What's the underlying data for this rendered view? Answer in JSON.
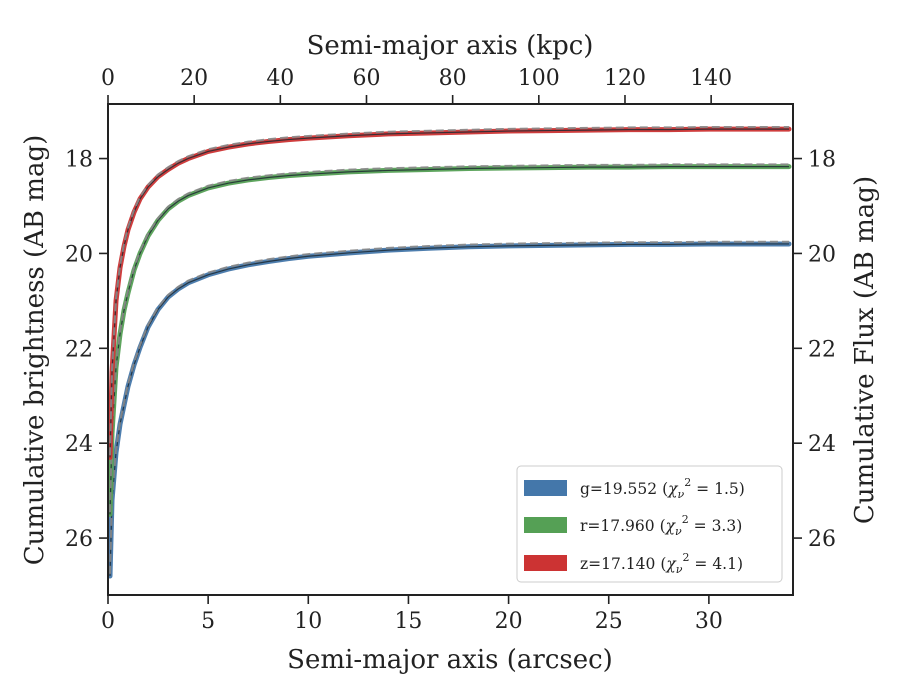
{
  "chart_data": {
    "type": "line",
    "xlabel": "Semi-major axis (arcsec)",
    "x2label": "Semi-major axis (kpc)",
    "ylabel": "Cumulative brightness (AB mag)",
    "y2label": "Cumulative Flux (AB mag)",
    "xlim": [
      0,
      34.2
    ],
    "x2lim": [
      0,
      159
    ],
    "ylim": [
      27.2,
      16.85
    ],
    "y_inverted": true,
    "x_ticks": [
      0,
      5,
      10,
      15,
      20,
      25,
      30
    ],
    "x_tick_labels": [
      "0",
      "5",
      "10",
      "15",
      "20",
      "25",
      "30"
    ],
    "x2_ticks": [
      0,
      20,
      40,
      60,
      80,
      100,
      120,
      140
    ],
    "x2_tick_labels": [
      "0",
      "20",
      "40",
      "60",
      "80",
      "100",
      "120",
      "140"
    ],
    "y_ticks": [
      18,
      20,
      22,
      24,
      26
    ],
    "y_tick_labels": [
      "18",
      "20",
      "22",
      "24",
      "26"
    ],
    "grid": false,
    "legend_position": "bottom-right",
    "model_style": "dashed gray",
    "series": [
      {
        "name": "g=19.552",
        "chi2": "1.5",
        "color": "#4477aa",
        "x": [
          0.1,
          0.2,
          0.4,
          0.6,
          0.8,
          1,
          1.3,
          1.6,
          2,
          2.5,
          3,
          3.5,
          4,
          5,
          6,
          7,
          8,
          9,
          10,
          12,
          14,
          16,
          18,
          20,
          22,
          24,
          26,
          28,
          30,
          32,
          34
        ],
        "y": [
          26.8,
          25.2,
          24.2,
          23.6,
          23.2,
          22.8,
          22.35,
          21.98,
          21.55,
          21.18,
          20.92,
          20.75,
          20.62,
          20.45,
          20.33,
          20.24,
          20.17,
          20.11,
          20.06,
          19.99,
          19.93,
          19.89,
          19.86,
          19.84,
          19.83,
          19.82,
          19.81,
          19.81,
          19.8,
          19.8,
          19.8
        ]
      },
      {
        "name": "r=17.960",
        "chi2": "3.3",
        "color": "#55a055",
        "x": [
          0.1,
          0.2,
          0.4,
          0.6,
          0.8,
          1,
          1.3,
          1.6,
          2,
          2.5,
          3,
          3.5,
          4,
          5,
          6,
          7,
          8,
          9,
          10,
          12,
          14,
          16,
          18,
          20,
          22,
          24,
          26,
          28,
          30,
          32,
          34
        ],
        "y": [
          25.5,
          23.8,
          22.4,
          21.7,
          21.2,
          20.83,
          20.35,
          20.0,
          19.63,
          19.3,
          19.06,
          18.9,
          18.78,
          18.62,
          18.52,
          18.45,
          18.4,
          18.36,
          18.33,
          18.28,
          18.25,
          18.23,
          18.21,
          18.2,
          18.19,
          18.18,
          18.18,
          18.17,
          18.17,
          18.17,
          18.17
        ]
      },
      {
        "name": "z=17.140",
        "chi2": "4.1",
        "color": "#cc3333",
        "x": [
          0.1,
          0.2,
          0.4,
          0.6,
          0.8,
          1,
          1.3,
          1.6,
          2,
          2.5,
          3,
          3.5,
          4,
          5,
          6,
          7,
          8,
          9,
          10,
          12,
          14,
          16,
          18,
          20,
          22,
          24,
          26,
          28,
          30,
          32,
          34
        ],
        "y": [
          24.3,
          22.5,
          21.0,
          20.3,
          19.85,
          19.5,
          19.13,
          18.85,
          18.6,
          18.38,
          18.23,
          18.1,
          18.0,
          17.85,
          17.76,
          17.69,
          17.64,
          17.6,
          17.57,
          17.52,
          17.48,
          17.46,
          17.44,
          17.42,
          17.41,
          17.4,
          17.39,
          17.39,
          17.38,
          17.38,
          17.38
        ]
      }
    ]
  }
}
